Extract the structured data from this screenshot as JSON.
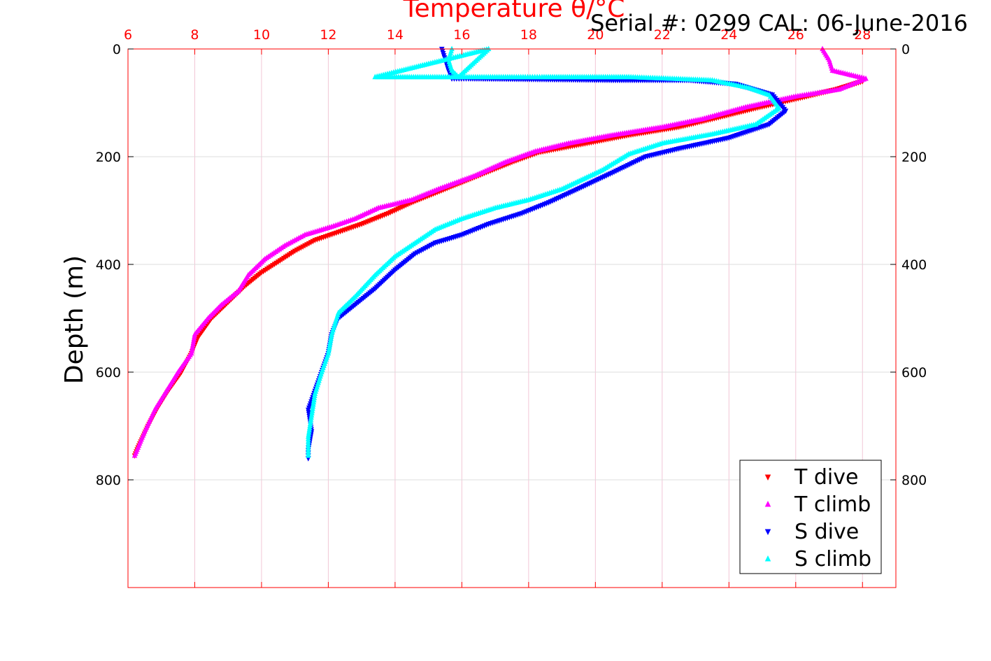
{
  "header": {
    "serial_text": "Serial #: 0299 CAL: 06-June-2016"
  },
  "colors": {
    "top_axis": "#ff0000",
    "t_dive": "#ff0000",
    "t_climb": "#ff00ff",
    "s_dive": "#0000ff",
    "s_climb": "#00ffff",
    "grid_x": "#f2c6d6",
    "grid_y": "#dddddd"
  },
  "chart_data": {
    "type": "scatter",
    "title": "Temperature θ/°C",
    "xlabel": "Temperature θ/°C",
    "ylabel": "Depth (m)",
    "xlim": [
      6,
      29
    ],
    "ylim": [
      0,
      1000
    ],
    "y_reversed": true,
    "x_axis_location": "top",
    "x_ticks": [
      "6",
      "8",
      "10",
      "12",
      "14",
      "16",
      "18",
      "20",
      "22",
      "24",
      "26",
      "28"
    ],
    "y_ticks": [
      "0",
      "200",
      "400",
      "600",
      "800"
    ],
    "grid": true,
    "legend_position": "bottom-right",
    "legend": [
      "T dive",
      "T climb",
      "S dive",
      "S climb"
    ],
    "series": [
      {
        "name": "T dive",
        "marker": "triangle-down",
        "color": "#ff0000",
        "points": [
          [
            28.0,
            60
          ],
          [
            27.2,
            75
          ],
          [
            26.2,
            90
          ],
          [
            24.8,
            110
          ],
          [
            23.5,
            130
          ],
          [
            22.5,
            145
          ],
          [
            21.0,
            160
          ],
          [
            19.5,
            178
          ],
          [
            18.3,
            192
          ],
          [
            17.5,
            210
          ],
          [
            16.5,
            235
          ],
          [
            15.5,
            260
          ],
          [
            14.5,
            285
          ],
          [
            13.8,
            305
          ],
          [
            13.0,
            325
          ],
          [
            12.3,
            340
          ],
          [
            11.6,
            355
          ],
          [
            11.0,
            375
          ],
          [
            10.5,
            395
          ],
          [
            10.0,
            415
          ],
          [
            9.5,
            440
          ],
          [
            9.0,
            470
          ],
          [
            8.5,
            500
          ],
          [
            8.1,
            535
          ],
          [
            7.9,
            565
          ],
          [
            7.6,
            600
          ],
          [
            7.2,
            635
          ],
          [
            6.9,
            665
          ],
          [
            6.6,
            700
          ],
          [
            6.3,
            740
          ],
          [
            6.2,
            755
          ]
        ]
      },
      {
        "name": "T climb",
        "marker": "triangle-up",
        "color": "#ff00ff",
        "points": [
          [
            26.8,
            0
          ],
          [
            27.0,
            20
          ],
          [
            27.1,
            40
          ],
          [
            28.1,
            55
          ],
          [
            27.3,
            75
          ],
          [
            26.0,
            88
          ],
          [
            24.5,
            108
          ],
          [
            23.2,
            130
          ],
          [
            22.0,
            145
          ],
          [
            20.5,
            160
          ],
          [
            19.2,
            175
          ],
          [
            18.2,
            190
          ],
          [
            17.3,
            210
          ],
          [
            16.4,
            235
          ],
          [
            15.3,
            260
          ],
          [
            14.5,
            280
          ],
          [
            13.5,
            295
          ],
          [
            12.8,
            315
          ],
          [
            12.1,
            330
          ],
          [
            11.3,
            345
          ],
          [
            10.7,
            365
          ],
          [
            10.1,
            390
          ],
          [
            9.6,
            420
          ],
          [
            9.3,
            450
          ],
          [
            8.8,
            475
          ],
          [
            8.4,
            500
          ],
          [
            8.0,
            530
          ],
          [
            7.9,
            565
          ],
          [
            7.5,
            600
          ],
          [
            7.1,
            640
          ],
          [
            6.8,
            670
          ],
          [
            6.5,
            710
          ],
          [
            6.3,
            740
          ],
          [
            6.2,
            755
          ]
        ]
      },
      {
        "name": "S dive",
        "marker": "triangle-down",
        "color": "#0000ff",
        "points": [
          [
            15.4,
            0
          ],
          [
            15.5,
            20
          ],
          [
            15.6,
            40
          ],
          [
            15.7,
            55
          ],
          [
            16.2,
            55
          ],
          [
            20.6,
            58
          ],
          [
            22.8,
            58
          ],
          [
            24.2,
            65
          ],
          [
            25.3,
            85
          ],
          [
            25.7,
            115
          ],
          [
            25.2,
            140
          ],
          [
            24.0,
            165
          ],
          [
            22.5,
            185
          ],
          [
            21.5,
            200
          ],
          [
            20.5,
            230
          ],
          [
            19.3,
            265
          ],
          [
            18.6,
            285
          ],
          [
            17.8,
            305
          ],
          [
            16.8,
            325
          ],
          [
            16.0,
            345
          ],
          [
            15.2,
            360
          ],
          [
            14.6,
            380
          ],
          [
            14.0,
            410
          ],
          [
            13.4,
            445
          ],
          [
            12.8,
            475
          ],
          [
            12.3,
            500
          ],
          [
            12.1,
            530
          ],
          [
            12.0,
            565
          ],
          [
            11.8,
            600
          ],
          [
            11.6,
            635
          ],
          [
            11.4,
            670
          ],
          [
            11.5,
            710
          ],
          [
            11.4,
            745
          ],
          [
            11.4,
            760
          ]
        ]
      },
      {
        "name": "S climb",
        "marker": "triangle-up",
        "color": "#00ffff",
        "points": [
          [
            15.7,
            0
          ],
          [
            15.6,
            20
          ],
          [
            15.7,
            40
          ],
          [
            15.9,
            52
          ],
          [
            16.8,
            0
          ],
          [
            13.4,
            52
          ],
          [
            16.6,
            52
          ],
          [
            17.5,
            52
          ],
          [
            17.9,
            52
          ],
          [
            18.4,
            52
          ],
          [
            19.6,
            52
          ],
          [
            21.0,
            52
          ],
          [
            22.3,
            55
          ],
          [
            23.5,
            58
          ],
          [
            24.6,
            72
          ],
          [
            25.2,
            85
          ],
          [
            25.5,
            110
          ],
          [
            24.8,
            140
          ],
          [
            23.5,
            158
          ],
          [
            22.0,
            175
          ],
          [
            21.0,
            195
          ],
          [
            20.2,
            225
          ],
          [
            19.0,
            260
          ],
          [
            18.0,
            280
          ],
          [
            17.0,
            295
          ],
          [
            16.0,
            315
          ],
          [
            15.2,
            335
          ],
          [
            14.6,
            360
          ],
          [
            14.0,
            385
          ],
          [
            13.4,
            420
          ],
          [
            12.8,
            460
          ],
          [
            12.3,
            490
          ],
          [
            12.1,
            530
          ],
          [
            12.0,
            565
          ],
          [
            11.8,
            600
          ],
          [
            11.6,
            640
          ],
          [
            11.5,
            680
          ],
          [
            11.4,
            720
          ],
          [
            11.4,
            755
          ]
        ]
      }
    ]
  }
}
